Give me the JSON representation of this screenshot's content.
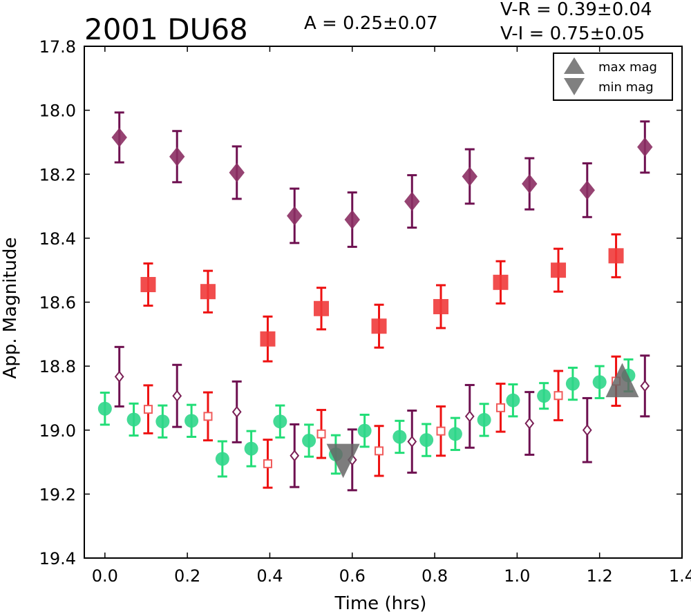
{
  "chart_data": {
    "type": "scatter",
    "title": "2001 DU68",
    "amplitude_label": "A  = 0.25±0.07",
    "color_label_1": "V-R = 0.39±0.04",
    "color_label_2": "V-I  = 0.75±0.05",
    "xlabel": "Time (hrs)",
    "ylabel": "App. Magnitude",
    "xlim": [
      -0.05,
      1.4
    ],
    "ylim": [
      19.4,
      17.8
    ],
    "y_inverted": true,
    "grid": false,
    "legend_position": "top-right",
    "legend": [
      {
        "label": "max mag",
        "marker": "triangle-up"
      },
      {
        "label": "min mag",
        "marker": "triangle-down"
      }
    ],
    "colors": {
      "filled_diamond": "#8b2f63",
      "red_square": "#f03a3a",
      "green_circle": "#2fd68a",
      "open_diamond": "#7a1f55",
      "open_square": "#f05a5a",
      "extremum_marker": "#666666",
      "errorbar_purple": "#6e1050",
      "errorbar_red": "#ee1111",
      "errorbar_green": "#22dd77"
    },
    "series": [
      {
        "marker": "diamond-filled",
        "points": [
          {
            "x": 0.035,
            "y": 18.085,
            "err": 0.078
          },
          {
            "x": 0.175,
            "y": 18.145,
            "err": 0.08
          },
          {
            "x": 0.32,
            "y": 18.195,
            "err": 0.082
          },
          {
            "x": 0.46,
            "y": 18.33,
            "err": 0.085
          },
          {
            "x": 0.6,
            "y": 18.342,
            "err": 0.085
          },
          {
            "x": 0.745,
            "y": 18.285,
            "err": 0.082
          },
          {
            "x": 0.885,
            "y": 18.207,
            "err": 0.085
          },
          {
            "x": 1.03,
            "y": 18.23,
            "err": 0.08
          },
          {
            "x": 1.17,
            "y": 18.25,
            "err": 0.084
          },
          {
            "x": 1.31,
            "y": 18.115,
            "err": 0.08
          }
        ]
      },
      {
        "marker": "square-filled",
        "points": [
          {
            "x": 0.105,
            "y": 18.545,
            "err": 0.066
          },
          {
            "x": 0.25,
            "y": 18.567,
            "err": 0.065
          },
          {
            "x": 0.395,
            "y": 18.715,
            "err": 0.07
          },
          {
            "x": 0.525,
            "y": 18.62,
            "err": 0.065
          },
          {
            "x": 0.665,
            "y": 18.675,
            "err": 0.067
          },
          {
            "x": 0.815,
            "y": 18.614,
            "err": 0.067
          },
          {
            "x": 0.96,
            "y": 18.538,
            "err": 0.066
          },
          {
            "x": 1.1,
            "y": 18.5,
            "err": 0.067
          },
          {
            "x": 1.24,
            "y": 18.455,
            "err": 0.067
          }
        ]
      },
      {
        "marker": "circle-filled",
        "points": [
          {
            "x": 0.0,
            "y": 18.933,
            "err": 0.05
          },
          {
            "x": 0.07,
            "y": 18.967,
            "err": 0.05
          },
          {
            "x": 0.14,
            "y": 18.973,
            "err": 0.05
          },
          {
            "x": 0.21,
            "y": 18.971,
            "err": 0.05
          },
          {
            "x": 0.285,
            "y": 19.09,
            "err": 0.055
          },
          {
            "x": 0.355,
            "y": 19.058,
            "err": 0.055
          },
          {
            "x": 0.425,
            "y": 18.973,
            "err": 0.05
          },
          {
            "x": 0.495,
            "y": 19.033,
            "err": 0.05
          },
          {
            "x": 0.56,
            "y": 19.076,
            "err": 0.06
          },
          {
            "x": 0.63,
            "y": 19.002,
            "err": 0.05
          },
          {
            "x": 0.715,
            "y": 19.021,
            "err": 0.05
          },
          {
            "x": 0.78,
            "y": 19.031,
            "err": 0.05
          },
          {
            "x": 0.85,
            "y": 19.012,
            "err": 0.05
          },
          {
            "x": 0.92,
            "y": 18.968,
            "err": 0.05
          },
          {
            "x": 0.99,
            "y": 18.907,
            "err": 0.05
          },
          {
            "x": 1.065,
            "y": 18.893,
            "err": 0.04
          },
          {
            "x": 1.135,
            "y": 18.855,
            "err": 0.05
          },
          {
            "x": 1.2,
            "y": 18.85,
            "err": 0.05
          },
          {
            "x": 1.27,
            "y": 18.829,
            "err": 0.05
          }
        ]
      },
      {
        "marker": "diamond-open",
        "points": [
          {
            "x": 0.035,
            "y": 18.833,
            "err": 0.093
          },
          {
            "x": 0.175,
            "y": 18.893,
            "err": 0.097
          },
          {
            "x": 0.32,
            "y": 18.943,
            "err": 0.095
          },
          {
            "x": 0.46,
            "y": 19.08,
            "err": 0.098
          },
          {
            "x": 0.6,
            "y": 19.093,
            "err": 0.095
          },
          {
            "x": 0.745,
            "y": 19.036,
            "err": 0.097
          },
          {
            "x": 0.885,
            "y": 18.957,
            "err": 0.098
          },
          {
            "x": 1.03,
            "y": 18.979,
            "err": 0.098
          },
          {
            "x": 1.17,
            "y": 19.0,
            "err": 0.1
          },
          {
            "x": 1.31,
            "y": 18.862,
            "err": 0.095
          }
        ]
      },
      {
        "marker": "square-open",
        "points": [
          {
            "x": 0.105,
            "y": 18.935,
            "err": 0.075
          },
          {
            "x": 0.25,
            "y": 18.957,
            "err": 0.075
          },
          {
            "x": 0.395,
            "y": 19.105,
            "err": 0.075
          },
          {
            "x": 0.525,
            "y": 19.012,
            "err": 0.075
          },
          {
            "x": 0.665,
            "y": 19.065,
            "err": 0.078
          },
          {
            "x": 0.815,
            "y": 19.003,
            "err": 0.077
          },
          {
            "x": 0.96,
            "y": 18.93,
            "err": 0.075
          },
          {
            "x": 1.1,
            "y": 18.892,
            "err": 0.077
          },
          {
            "x": 1.24,
            "y": 18.847,
            "err": 0.077
          }
        ]
      }
    ],
    "extrema": [
      {
        "type": "max",
        "marker": "triangle-up",
        "x": 1.255,
        "y": 18.855
      },
      {
        "type": "min",
        "marker": "triangle-down",
        "x": 0.578,
        "y": 19.085
      }
    ],
    "xticks": [
      0.0,
      0.2,
      0.4,
      0.6,
      0.8,
      1.0,
      1.2,
      1.4
    ],
    "xtick_labels": [
      "0.0",
      "0.2",
      "0.4",
      "0.6",
      "0.8",
      "1.0",
      "1.2",
      "1.4"
    ],
    "yticks": [
      17.8,
      18.0,
      18.2,
      18.4,
      18.6,
      18.8,
      19.0,
      19.2,
      19.4
    ],
    "ytick_labels": [
      "17.8",
      "18.0",
      "18.2",
      "18.4",
      "18.6",
      "18.8",
      "19.0",
      "19.2",
      "19.4"
    ]
  }
}
